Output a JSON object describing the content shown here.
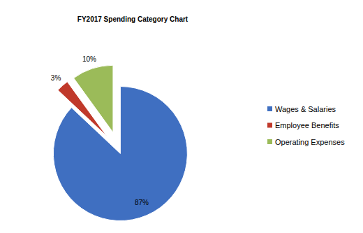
{
  "chart_data": {
    "type": "pie",
    "title": "FY2017 Spending Category Chart",
    "categories": [
      "Wages & Salaries",
      "Employee Benefits",
      "Operating Expenses"
    ],
    "values": [
      87,
      3,
      10
    ],
    "value_labels": [
      "87%",
      "3%",
      "10%"
    ],
    "colors": [
      "#3f6fc1",
      "#c0392b",
      "#9bbb59"
    ],
    "data_labels": true,
    "legend": "right"
  }
}
